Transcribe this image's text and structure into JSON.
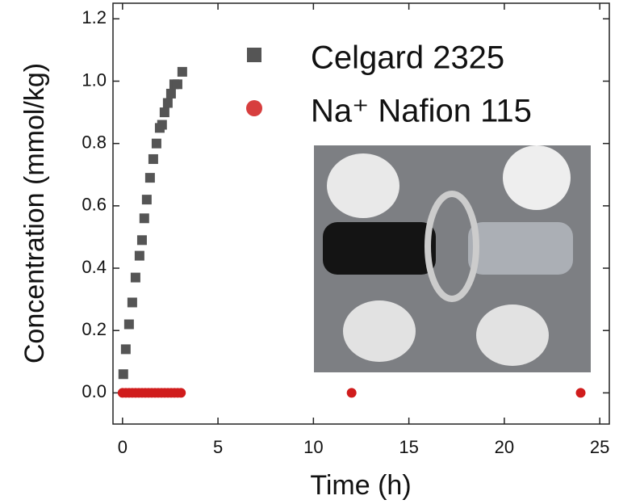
{
  "chart_data": {
    "type": "scatter",
    "xlabel": "Time  (h)",
    "ylabel": "Concentration  (mmol/kg)",
    "xlim": [
      -0.5,
      25.5
    ],
    "ylim": [
      -0.1,
      1.25
    ],
    "xticks": [
      0,
      5,
      10,
      15,
      20,
      25
    ],
    "yticks": [
      {
        "value": 0,
        "label": "0.0"
      },
      {
        "value": 0.2,
        "label": "0.2"
      },
      {
        "value": 0.4,
        "label": "0.4"
      },
      {
        "value": 0.6,
        "label": "0.6"
      },
      {
        "value": 0.8,
        "label": "0.8"
      },
      {
        "value": 1,
        "label": "1.0"
      },
      {
        "value": 1.2,
        "label": "1.2"
      }
    ],
    "series": [
      {
        "name": "Celgard 2325",
        "color": "#555555",
        "marker": "square",
        "x": [
          0.04,
          0.17,
          0.34,
          0.51,
          0.68,
          0.89,
          1.02,
          1.14,
          1.27,
          1.44,
          1.61,
          1.78,
          1.95,
          2.07,
          2.2,
          2.37,
          2.54,
          2.71,
          2.88,
          3.13
        ],
        "values": [
          0.06,
          0.14,
          0.22,
          0.29,
          0.37,
          0.44,
          0.49,
          0.56,
          0.62,
          0.69,
          0.75,
          0.8,
          0.85,
          0.86,
          0.9,
          0.93,
          0.96,
          0.99,
          0.99,
          1.03
        ]
      },
      {
        "name": "Na⁺ Nafion 115",
        "color": "#d01c1c",
        "marker": "circle",
        "x": [
          0,
          0.17,
          0.34,
          0.51,
          0.68,
          0.85,
          1.02,
          1.19,
          1.36,
          1.53,
          1.7,
          1.87,
          2.04,
          2.21,
          2.38,
          2.55,
          2.72,
          2.89,
          3.06,
          12,
          24
        ],
        "values": [
          0,
          0,
          0,
          0,
          0,
          0,
          0,
          0,
          0,
          0,
          0,
          0,
          0,
          0,
          0,
          0,
          0,
          0,
          0,
          0,
          0
        ]
      }
    ]
  }
}
